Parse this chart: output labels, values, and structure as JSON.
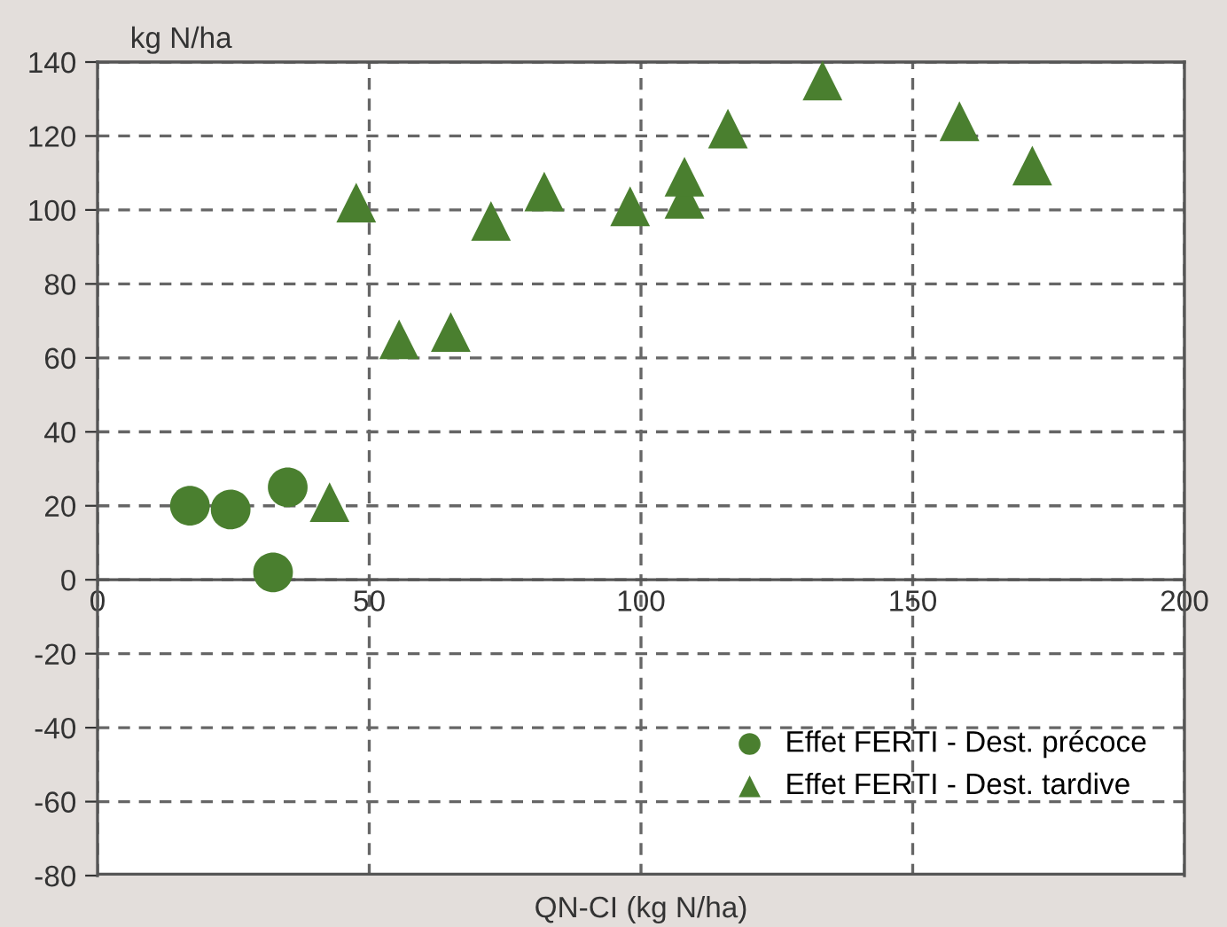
{
  "chart_data": {
    "type": "scatter",
    "ylabel": "kg N/ha",
    "xlabel": "QN-CI (kg N/ha)",
    "xlim": [
      0,
      200
    ],
    "xticks": [
      0,
      50,
      100,
      150,
      200
    ],
    "ylim": [
      -80,
      140
    ],
    "yticks": [
      -80,
      -60,
      -40,
      -20,
      0,
      20,
      40,
      60,
      80,
      100,
      120,
      140
    ],
    "grid": true,
    "legend": "bottom right",
    "series": [
      {
        "name": "Effet FERTI - Dest. précoce",
        "color": "#4a7f2f",
        "marker": "circle",
        "x": [
          17,
          24.5,
          35,
          32.3
        ],
        "values": [
          20,
          19,
          25,
          2
        ]
      },
      {
        "name": "Effet FERTI - Dest. tardive",
        "color": "#4a7f2f",
        "marker": "triangle",
        "x": [
          42.7,
          47.6,
          55.5,
          65,
          72.4,
          82.2,
          98,
          108,
          108,
          116,
          133.4,
          158.6,
          172
        ],
        "values": [
          21,
          102,
          65,
          67,
          97,
          105,
          101,
          103,
          109,
          122,
          135,
          124,
          112
        ]
      }
    ]
  }
}
